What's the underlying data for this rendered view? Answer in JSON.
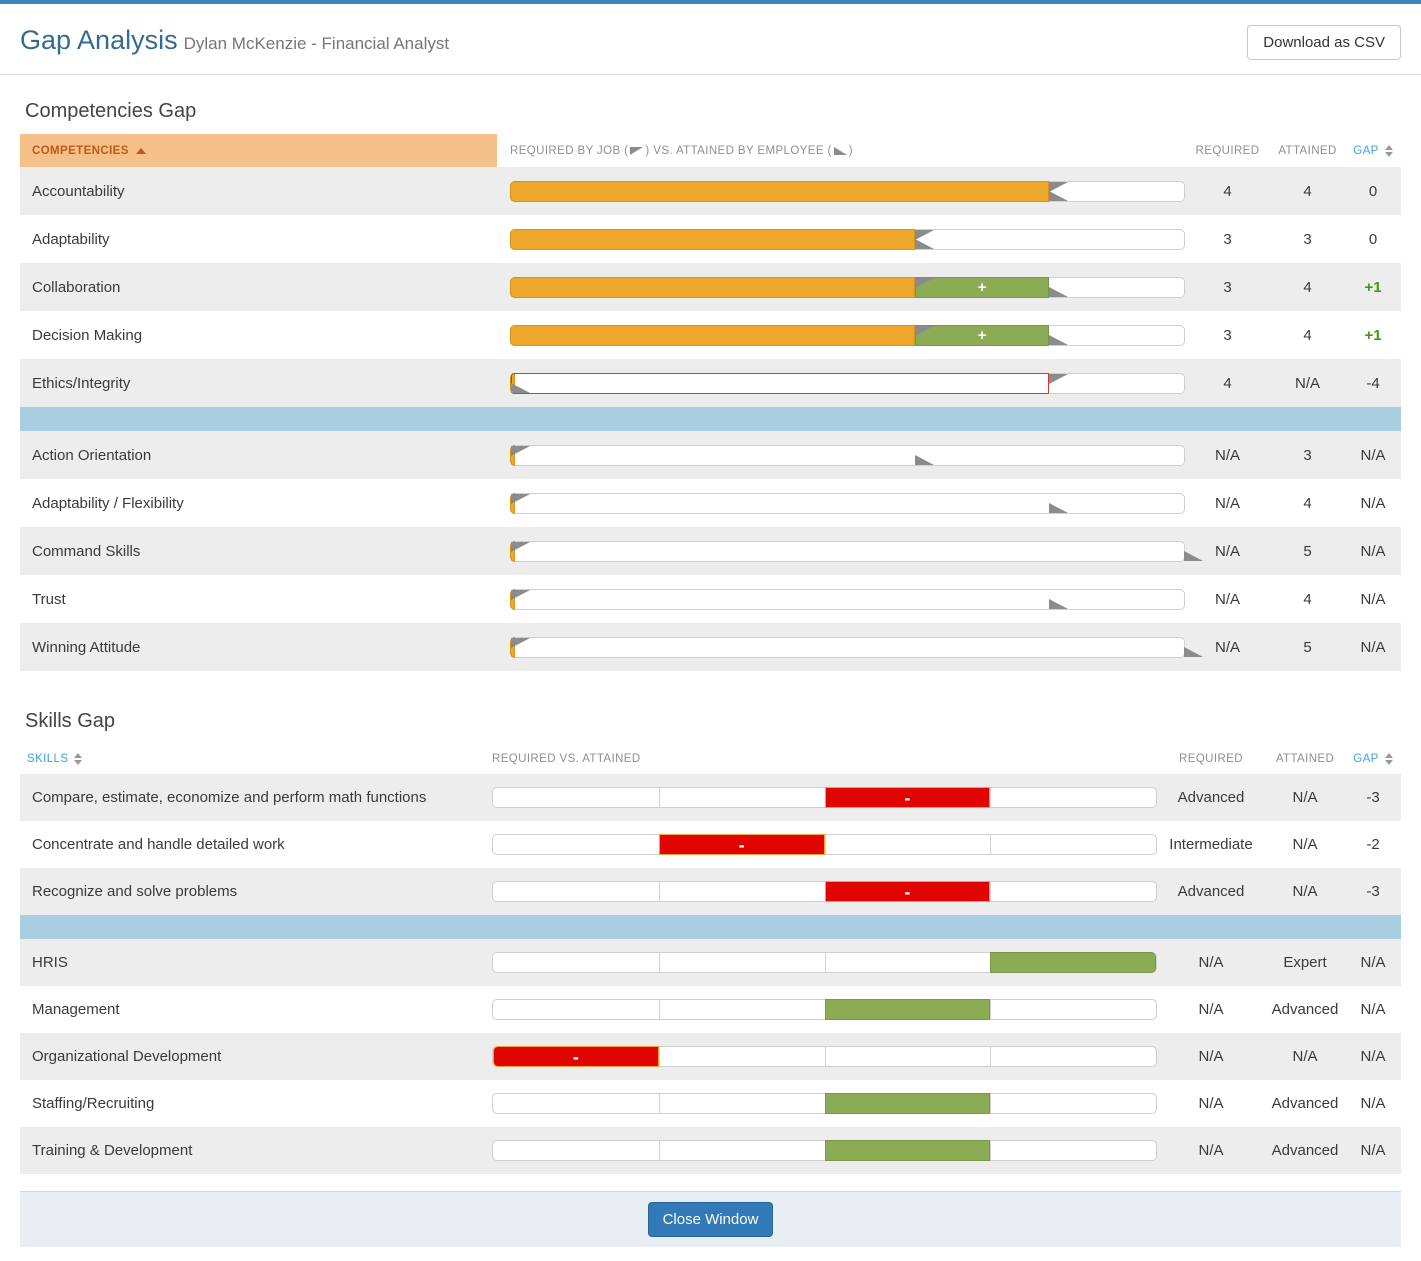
{
  "colors": {
    "accent_top": "#3f83bc",
    "required_bar": "#eda72a",
    "attained_positive": "#8cab55",
    "gap_negative_block": "#e00500",
    "gap_negative_outline": "#cf3c33",
    "gap_positive_text": "#3f9714",
    "separator_blue": "#a9cde1",
    "header_orange_bg": "#f5c08a",
    "header_orange_text": "#bf5b16",
    "sort_blue_text": "#41a0dd",
    "close_button_blue": "#3279b7"
  },
  "header": {
    "title": "Gap Analysis",
    "subtitle": "Dylan McKenzie - Financial Analyst",
    "download_button": "Download as CSV"
  },
  "competencies": {
    "heading": "Competencies Gap",
    "columns": {
      "name": "COMPETENCIES",
      "bars_prefix": "REQUIRED BY JOB (",
      "bars_mid": ") VS. ATTAINED BY EMPLOYEE (",
      "bars_suffix": ")",
      "required": "REQUIRED",
      "attained": "ATTAINED",
      "gap": "GAP"
    },
    "scale_max": 5,
    "groups": [
      {
        "rows": [
          {
            "label": "Accountability",
            "required": "4",
            "attained": "4",
            "gap": "0",
            "required_value": 4,
            "attained_value": 4
          },
          {
            "label": "Adaptability",
            "required": "3",
            "attained": "3",
            "gap": "0",
            "required_value": 3,
            "attained_value": 3
          },
          {
            "label": "Collaboration",
            "required": "3",
            "attained": "4",
            "gap": "+1",
            "required_value": 3,
            "attained_value": 4
          },
          {
            "label": "Decision Making",
            "required": "3",
            "attained": "4",
            "gap": "+1",
            "required_value": 3,
            "attained_value": 4
          },
          {
            "label": "Ethics/Integrity",
            "required": "4",
            "attained": "N/A",
            "gap": "-4",
            "required_value": 4,
            "attained_value": 0
          }
        ]
      },
      {
        "rows": [
          {
            "label": "Action Orientation",
            "required": "N/A",
            "attained": "3",
            "gap": "N/A",
            "required_value": 0,
            "attained_value": 3
          },
          {
            "label": "Adaptability / Flexibility",
            "required": "N/A",
            "attained": "4",
            "gap": "N/A",
            "required_value": 0,
            "attained_value": 4
          },
          {
            "label": "Command Skills",
            "required": "N/A",
            "attained": "5",
            "gap": "N/A",
            "required_value": 0,
            "attained_value": 5
          },
          {
            "label": "Trust",
            "required": "N/A",
            "attained": "4",
            "gap": "N/A",
            "required_value": 0,
            "attained_value": 4
          },
          {
            "label": "Winning Attitude",
            "required": "N/A",
            "attained": "5",
            "gap": "N/A",
            "required_value": 0,
            "attained_value": 5
          }
        ]
      }
    ]
  },
  "skills": {
    "heading": "Skills Gap",
    "columns": {
      "name": "SKILLS",
      "bars": "REQUIRED VS. ATTAINED",
      "required": "REQUIRED",
      "attained": "ATTAINED",
      "gap": "GAP"
    },
    "segments": 4,
    "groups": [
      {
        "rows": [
          {
            "label": "Compare, estimate, economize and perform math functions",
            "required": "Advanced",
            "attained": "N/A",
            "gap": "-3",
            "block": {
              "color": "red",
              "segment": 3,
              "label": "-"
            }
          },
          {
            "label": "Concentrate and handle detailed work",
            "required": "Intermediate",
            "attained": "N/A",
            "gap": "-2",
            "block": {
              "color": "red",
              "segment": 2,
              "label": "-"
            }
          },
          {
            "label": "Recognize and solve problems",
            "required": "Advanced",
            "attained": "N/A",
            "gap": "-3",
            "block": {
              "color": "red",
              "segment": 3,
              "label": "-"
            }
          }
        ]
      },
      {
        "rows": [
          {
            "label": "HRIS",
            "required": "N/A",
            "attained": "Expert",
            "gap": "N/A",
            "block": {
              "color": "green",
              "segment": 4,
              "label": ""
            }
          },
          {
            "label": "Management",
            "required": "N/A",
            "attained": "Advanced",
            "gap": "N/A",
            "block": {
              "color": "green",
              "segment": 3,
              "label": ""
            }
          },
          {
            "label": "Organizational Development",
            "required": "N/A",
            "attained": "N/A",
            "gap": "N/A",
            "block": {
              "color": "red",
              "segment": 1,
              "label": "-"
            }
          },
          {
            "label": "Staffing/Recruiting",
            "required": "N/A",
            "attained": "Advanced",
            "gap": "N/A",
            "block": {
              "color": "green",
              "segment": 3,
              "label": ""
            }
          },
          {
            "label": "Training & Development",
            "required": "N/A",
            "attained": "Advanced",
            "gap": "N/A",
            "block": {
              "color": "green",
              "segment": 3,
              "label": ""
            }
          }
        ]
      }
    ]
  },
  "footer": {
    "close_button": "Close Window"
  }
}
